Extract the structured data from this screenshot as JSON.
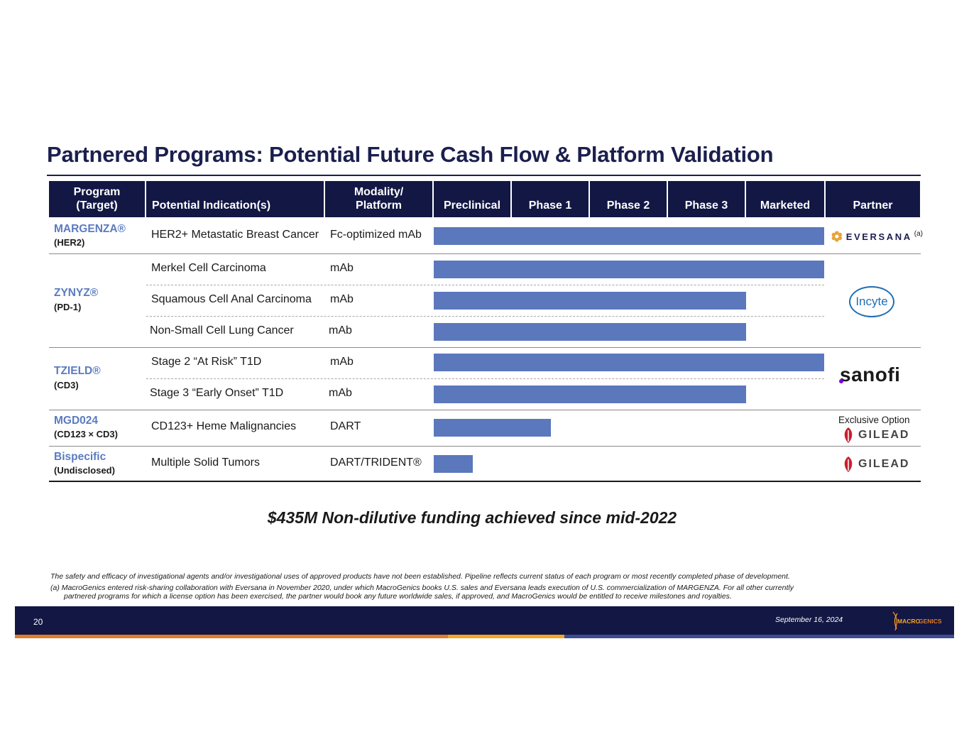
{
  "title": "Partnered Programs: Potential Future Cash Flow & Platform Validation",
  "headers": {
    "program": "Program\n(Target)",
    "indication": "Potential Indication(s)",
    "modality": "Modality/\nPlatform",
    "phases": [
      "Preclinical",
      "Phase 1",
      "Phase 2",
      "Phase 3",
      "Marketed"
    ],
    "partner": "Partner"
  },
  "programs": [
    {
      "name": "MARGENZA®",
      "target": "(HER2)"
    },
    {
      "name": "ZYNYZ®",
      "target": "(PD-1)"
    },
    {
      "name": "TZIELD®",
      "target": "(CD3)"
    },
    {
      "name": "MGD024",
      "target": "(CD123 × CD3)"
    },
    {
      "name": "Bispecific",
      "target": "(Undisclosed)"
    }
  ],
  "rows": [
    {
      "indication": "HER2+ Metastatic Breast Cancer",
      "modality": "Fc-optimized mAb",
      "stage": "Marketed",
      "progress": 1.0
    },
    {
      "indication": "Merkel Cell Carcinoma",
      "modality": "mAb",
      "stage": "Marketed",
      "progress": 1.0
    },
    {
      "indication": "Squamous Cell Anal Carcinoma",
      "modality": "mAb",
      "stage": "Phase 3",
      "progress": 0.8
    },
    {
      "indication": "Non-Small Cell Lung Cancer",
      "modality": "mAb",
      "stage": "Phase 3",
      "progress": 0.8
    },
    {
      "indication": "Stage 2 “At Risk” T1D",
      "modality": "mAb",
      "stage": "Marketed",
      "progress": 1.0
    },
    {
      "indication": "Stage 3 “Early Onset” T1D",
      "modality": "mAb",
      "stage": "Phase 3",
      "progress": 0.8
    },
    {
      "indication": "CD123+ Heme Malignancies",
      "modality": "DART",
      "stage": "Phase 1",
      "progress": 0.3
    },
    {
      "indication": "Multiple Solid Tumors",
      "modality": "DART/TRIDENT®",
      "stage": "Preclinical",
      "progress": 0.1
    }
  ],
  "partners": {
    "eversana": "EVERSANA",
    "eversana_note": "(a)",
    "incyte": "Incyte",
    "sanofi": "sanofi",
    "exclusive_option": "Exclusive Option",
    "gilead": "GILEAD"
  },
  "funding": "$435M Non-dilutive funding achieved since mid-2022",
  "footnotes": {
    "safety": "The safety and efficacy of investigational agents and/or investigational uses of approved products have not been established. Pipeline reflects current status of each program or most recently completed phase of development.",
    "a_line1": "(a) MacroGenics entered risk-sharing collaboration with Eversana in November 2020, under which MacroGenics books U.S. sales and Eversana leads execution of U.S. commercialization of MARGENZA. For all other currently",
    "a_line2": "partnered programs for which a license option has been exercised, the partner would book any future worldwide sales, if approved, and MacroGenics would be entitled to receive milestones and royalties."
  },
  "footer": {
    "page_number": "20",
    "date": "September 16, 2024",
    "logo_text_1": "MACRO",
    "logo_text_2": "GENICS"
  },
  "colors": {
    "navy": "#131743",
    "bar": "#5b78bd",
    "program_name": "#5b7bc0",
    "stripe_orange": "#e07b28",
    "stripe_yellow": "#f5a623",
    "stripe_blue": "#3c4d92"
  }
}
